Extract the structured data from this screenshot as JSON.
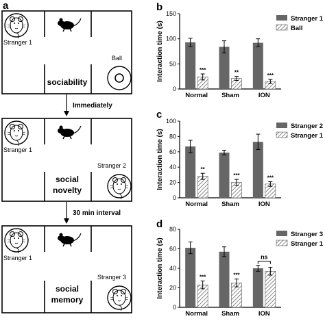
{
  "panels": {
    "a": "a",
    "b": "b",
    "c": "c",
    "d": "d"
  },
  "schematic": {
    "stage1": {
      "room_label": "sociability",
      "left_label": "Stranger 1",
      "right_label": "Ball"
    },
    "arrow1": "Immediately",
    "stage2": {
      "room_label_line1": "social",
      "room_label_line2": "novelty",
      "left_label": "Stranger 1",
      "right_label": "Stranger 2"
    },
    "arrow2": "30 min interval",
    "stage3": {
      "room_label_line1": "social",
      "room_label_line2": "memory",
      "left_label": "Stranger 1",
      "right_label": "Stranger 3"
    }
  },
  "chart_data": [
    {
      "type": "bar",
      "panel": "b",
      "categories": [
        "Normal",
        "Sham",
        "ION"
      ],
      "series": [
        {
          "name": "Stranger 1",
          "values": [
            93,
            84,
            92
          ],
          "errors": [
            8,
            12,
            8
          ],
          "color": "#666666"
        },
        {
          "name": "Ball",
          "values": [
            24,
            21,
            15
          ],
          "errors": [
            6,
            4,
            4
          ],
          "pattern": "hatch"
        }
      ],
      "significance": [
        "***",
        "**",
        "***"
      ],
      "ylabel": "Interaction time (s)",
      "ylim": [
        0,
        150
      ],
      "yticks": [
        "0",
        "50",
        "100",
        "150"
      ],
      "legend": "top-right"
    },
    {
      "type": "bar",
      "panel": "c",
      "categories": [
        "Normal",
        "Sham",
        "ION"
      ],
      "series": [
        {
          "name": "Stranger 2",
          "values": [
            67,
            59,
            73
          ],
          "errors": [
            8,
            3,
            10
          ],
          "color": "#666666"
        },
        {
          "name": "Stranger 1",
          "values": [
            28,
            20,
            18
          ],
          "errors": [
            4,
            4,
            3
          ],
          "pattern": "hatch"
        }
      ],
      "significance": [
        "**",
        "***",
        "***"
      ],
      "ylabel": "Interaction time (s)",
      "ylim": [
        0,
        100
      ],
      "yticks": [
        "0",
        "20",
        "40",
        "60",
        "80",
        "100"
      ],
      "legend": "top-right"
    },
    {
      "type": "bar",
      "panel": "d",
      "categories": [
        "Normal",
        "Sham",
        "ION"
      ],
      "series": [
        {
          "name": "Stranger 3",
          "values": [
            61,
            57,
            40
          ],
          "errors": [
            6,
            5,
            3
          ],
          "color": "#666666"
        },
        {
          "name": "Stranger 1",
          "values": [
            23,
            25,
            37
          ],
          "errors": [
            4,
            4,
            4
          ],
          "pattern": "hatch"
        }
      ],
      "significance": [
        "***",
        "***",
        "ns"
      ],
      "ylabel": "Interaction time (s)",
      "ylim": [
        0,
        80
      ],
      "yticks": [
        "0",
        "20",
        "40",
        "60",
        "80"
      ],
      "legend": "top-right"
    }
  ]
}
